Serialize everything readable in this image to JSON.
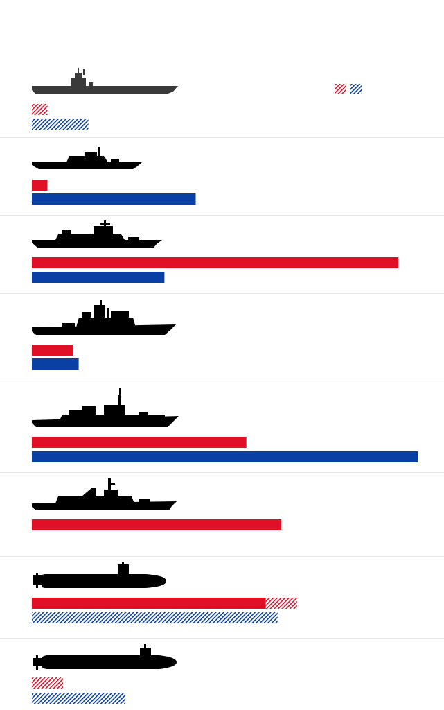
{
  "chart_data": {
    "type": "bar",
    "orientation": "horizontal",
    "title": "",
    "xlabel": "",
    "ylabel": "",
    "xlim": [
      0,
      100
    ],
    "grid": false,
    "legend": {
      "position": "top-right",
      "entries": [
        "",
        ""
      ],
      "style": "hatched"
    },
    "colors": {
      "series_a": "#e01027",
      "series_b": "#0a3fa3",
      "divider": "#e8e8e8",
      "ship": "#000000",
      "carrier": "#3a3a3a"
    },
    "categories": [
      "aircraft-carrier",
      "amphibious-assault-ship",
      "frigate",
      "cruiser",
      "destroyer",
      "corvette",
      "attack-submarine",
      "ballistic-missile-submarine"
    ],
    "series": [
      {
        "values": [
          {
            "solid": 0,
            "hatched": 4
          },
          {
            "solid": 4,
            "hatched": 0
          },
          {
            "solid": 94,
            "hatched": 0
          },
          {
            "solid": 10.5,
            "hatched": 0
          },
          {
            "solid": 55,
            "hatched": 0
          },
          {
            "solid": 64,
            "hatched": 0
          },
          {
            "solid": 60,
            "hatched": 8
          },
          {
            "solid": 0,
            "hatched": 8
          }
        ]
      },
      {
        "values": [
          {
            "solid": 0,
            "hatched": 14.5
          },
          {
            "solid": 42,
            "hatched": 0
          },
          {
            "solid": 34,
            "hatched": 0
          },
          {
            "solid": 12,
            "hatched": 0
          },
          {
            "solid": 99,
            "hatched": 0
          },
          {
            "solid": 0,
            "hatched": 0
          },
          {
            "solid": 0,
            "hatched": 63
          },
          {
            "solid": 0,
            "hatched": 24
          }
        ]
      }
    ]
  }
}
